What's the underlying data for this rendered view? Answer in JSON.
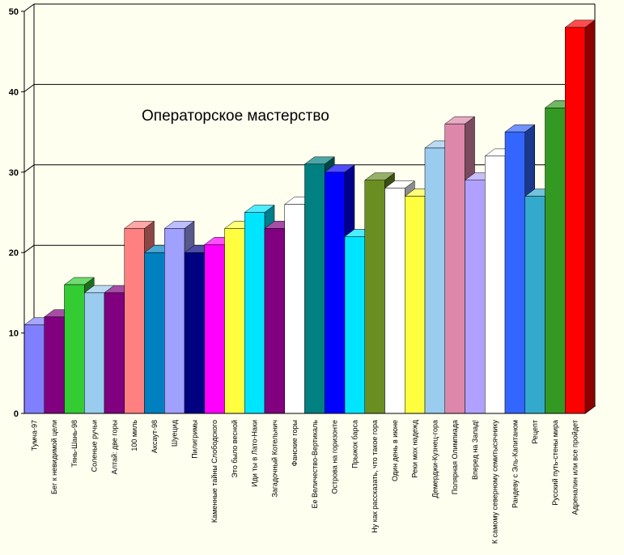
{
  "chart_data": {
    "type": "bar",
    "title": "Операторское мастерство",
    "xlabel": "",
    "ylabel": "",
    "ylim": [
      0,
      50
    ],
    "yticks": [
      0,
      10,
      20,
      30,
      40,
      50
    ],
    "grid": "horizontal",
    "style": "3d",
    "categories": [
      "Тумча-97",
      "Бег к невидимой цели",
      "Тянь-Шань-98",
      "Соленые ручьи",
      "Алтай: две горы",
      "100 миль",
      "Аксаут-98",
      "Шуецид",
      "Пилигримы",
      "Каменные тайны Слободского",
      "Это было весной",
      "Иди ты в Лато-Наки",
      "Загадочный Котельнич",
      "Фанские горы",
      "Ее Величество-Вертикаль",
      "Острова на горизонте",
      "Прыжок барса",
      "Ну как рассказать, что такое гора",
      "Один день в июне",
      "Реки мох надежд",
      "Демерджи-Кузнец-гора",
      "Полярная Олимпиада",
      "Вперед на Запад!",
      "К самому северному семитысячнику",
      "Рандеву с Эль-Капитаном",
      "Рецепт",
      "Русский путь-стены мира",
      "Адреналин или все пройдет"
    ],
    "values": [
      11,
      12,
      16,
      15,
      15,
      23,
      20,
      23,
      20,
      21,
      23,
      25,
      23,
      26,
      31,
      30,
      22,
      29,
      28,
      27,
      33,
      36,
      29,
      32,
      35,
      27,
      38,
      48
    ],
    "colors": [
      "#8080ff",
      "#800080",
      "#33cc33",
      "#99ccee",
      "#800080",
      "#ff8080",
      "#0080c0",
      "#a0a0ff",
      "#000080",
      "#ff00ff",
      "#ffff40",
      "#00e5ff",
      "#800080",
      "#ffffff",
      "#008080",
      "#0000ff",
      "#00e5ff",
      "#6b8e23",
      "#ffffff",
      "#ffff40",
      "#99ccee",
      "#dd88aa",
      "#b0a0ff",
      "#ffffff",
      "#3366ff",
      "#33aacc",
      "#339922",
      "#ff0000"
    ]
  }
}
